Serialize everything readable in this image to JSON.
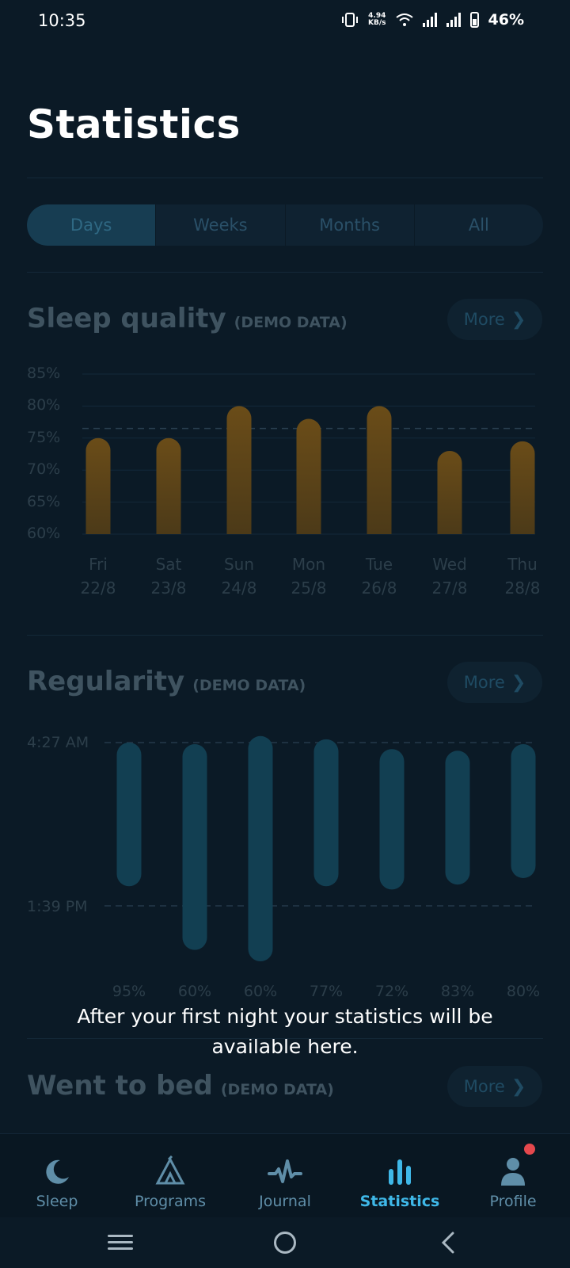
{
  "status_bar": {
    "time": "10:35",
    "net_speed_top": "4.94",
    "net_speed_bottom": "KB/s",
    "battery": "46%"
  },
  "page": {
    "title": "Statistics"
  },
  "tabs": [
    {
      "label": "Days",
      "active": true
    },
    {
      "label": "Weeks",
      "active": false
    },
    {
      "label": "Months",
      "active": false
    },
    {
      "label": "All",
      "active": false
    }
  ],
  "sleep_quality": {
    "title": "Sleep quality",
    "note": "(DEMO DATA)",
    "more_label": "More",
    "y_ticks": [
      "85%",
      "80%",
      "75%",
      "70%",
      "65%",
      "60%"
    ],
    "days": [
      "Fri",
      "Sat",
      "Sun",
      "Mon",
      "Tue",
      "Wed",
      "Thu"
    ],
    "dates": [
      "22/8",
      "23/8",
      "24/8",
      "25/8",
      "26/8",
      "27/8",
      "28/8"
    ]
  },
  "regularity": {
    "title": "Regularity",
    "note": "(DEMO DATA)",
    "more_label": "More",
    "top_label": "4:27 AM",
    "bottom_label": "1:39 PM",
    "percents": [
      "95%",
      "60%",
      "60%",
      "77%",
      "72%",
      "83%",
      "80%"
    ]
  },
  "went_to_bed": {
    "title": "Went to bed",
    "note": "(DEMO DATA)",
    "more_label": "More"
  },
  "overlay_message": "After your first night your statistics will be available here.",
  "chart_data": [
    {
      "type": "bar",
      "title": "Sleep quality",
      "categories": [
        "Fri 22/8",
        "Sat 23/8",
        "Sun 24/8",
        "Mon 25/8",
        "Tue 26/8",
        "Wed 27/8",
        "Thu 28/8"
      ],
      "values": [
        75,
        75,
        80,
        78,
        80,
        73,
        74.5
      ],
      "ylim": [
        60,
        85
      ],
      "reference_line": 76.5,
      "color": "#5e4418"
    },
    {
      "type": "bar",
      "title": "Regularity",
      "categories": [
        "95%",
        "60%",
        "60%",
        "77%",
        "72%",
        "83%",
        "80%"
      ],
      "range_top_label": "4:27 AM",
      "range_bottom_label": "1:39 PM",
      "bars_relative": [
        [
          0.0,
          0.88
        ],
        [
          0.01,
          1.27
        ],
        [
          -0.04,
          1.34
        ],
        [
          -0.02,
          0.88
        ],
        [
          0.04,
          0.9
        ],
        [
          0.05,
          0.87
        ],
        [
          0.01,
          0.83
        ]
      ],
      "color": "#123f52"
    }
  ],
  "bottom_nav": [
    {
      "label": "Sleep",
      "icon": "moon-icon",
      "active": false
    },
    {
      "label": "Programs",
      "icon": "tent-icon",
      "active": false
    },
    {
      "label": "Journal",
      "icon": "wave-icon",
      "active": false
    },
    {
      "label": "Statistics",
      "icon": "bar-chart-icon",
      "active": true
    },
    {
      "label": "Profile",
      "icon": "person-icon",
      "active": false,
      "badge": true
    }
  ],
  "colors": {
    "background": "#0b1a26",
    "accent": "#3fb8e8",
    "badge": "#e5484d"
  }
}
